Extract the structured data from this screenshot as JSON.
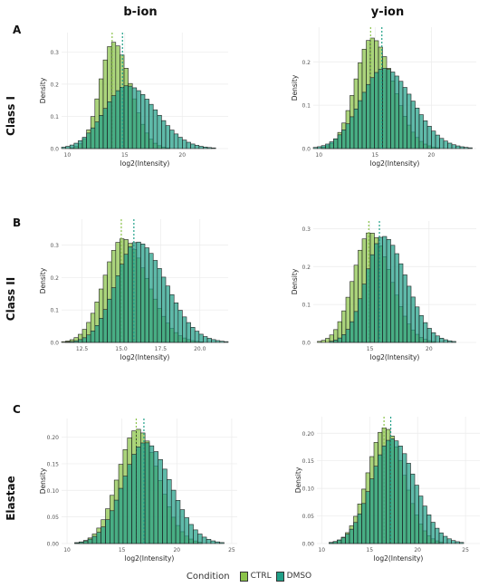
{
  "columns": [
    "b-ion",
    "y-ion"
  ],
  "rows": [
    {
      "letter": "A",
      "label": "Class I"
    },
    {
      "letter": "B",
      "label": "Class II"
    },
    {
      "letter": "C",
      "label": "Elastae"
    }
  ],
  "legend": {
    "title": "Condition",
    "entries": [
      {
        "name": "CTRL",
        "color": "#8bc34a"
      },
      {
        "name": "DMSO",
        "color": "#21a088"
      }
    ]
  },
  "colors": {
    "ctrl": "#8bc34a",
    "dmso": "#21a088",
    "grid": "#ebebeb",
    "outline": "#222222"
  },
  "chart_data": [
    {
      "type": "bar",
      "panel": "A-b-ion",
      "xlabel": "log2(Intensity)",
      "ylabel": "Density",
      "xlim": [
        9.5,
        24
      ],
      "ylim": [
        0,
        0.36
      ],
      "xticks": [
        10,
        15,
        20
      ],
      "xtick_labels": [
        "10",
        "15",
        "20"
      ],
      "yticks": [
        0,
        0.1,
        0.2,
        0.3
      ],
      "ytick_labels": [
        "0.0",
        "0.1",
        "0.2",
        "0.3"
      ],
      "series": [
        {
          "name": "CTRL",
          "mean": 14.0,
          "sd": 1.15,
          "peak": 0.33,
          "skew": 0.3,
          "median": 13.9
        },
        {
          "name": "DMSO",
          "mean": 15.2,
          "sd": 2.0,
          "peak": 0.195,
          "skew": 0.25,
          "median": 14.8
        }
      ]
    },
    {
      "type": "bar",
      "panel": "A-y-ion",
      "xlabel": "log2(Intensity)",
      "ylabel": "Density",
      "xlim": [
        9.5,
        24
      ],
      "ylim": [
        0,
        0.28
      ],
      "xticks": [
        10,
        15,
        20
      ],
      "xtick_labels": [
        "10",
        "15",
        "20"
      ],
      "yticks": [
        0,
        0.1,
        0.2
      ],
      "ytick_labels": [
        "0.0",
        "0.1",
        "0.2"
      ],
      "series": [
        {
          "name": "CTRL",
          "mean": 14.7,
          "sd": 1.45,
          "peak": 0.255,
          "skew": 0.3,
          "median": 14.6
        },
        {
          "name": "DMSO",
          "mean": 15.8,
          "sd": 2.1,
          "peak": 0.185,
          "skew": 0.2,
          "median": 15.6
        }
      ]
    },
    {
      "type": "bar",
      "panel": "B-b-ion",
      "xlabel": "log2(Intensity)",
      "ylabel": "Density",
      "xlim": [
        11.2,
        21.8
      ],
      "ylim": [
        0,
        0.38
      ],
      "xticks": [
        12.5,
        15.0,
        17.5,
        20.0
      ],
      "xtick_labels": [
        "12.5",
        "15.0",
        "17.5",
        "20.0"
      ],
      "yticks": [
        0,
        0.1,
        0.2,
        0.3
      ],
      "ytick_labels": [
        "0.0",
        "0.1",
        "0.2",
        "0.3"
      ],
      "series": [
        {
          "name": "CTRL",
          "mean": 15.1,
          "sd": 1.2,
          "peak": 0.32,
          "skew": 0.3,
          "median": 15.0
        },
        {
          "name": "DMSO",
          "mean": 16.0,
          "sd": 1.35,
          "peak": 0.31,
          "skew": 0.35,
          "median": 15.8
        }
      ]
    },
    {
      "type": "bar",
      "panel": "B-y-ion",
      "xlabel": "log2(Intensity)",
      "ylabel": "Density",
      "xlim": [
        10.2,
        24
      ],
      "ylim": [
        0,
        0.32
      ],
      "xticks": [
        15,
        20
      ],
      "xtick_labels": [
        "15",
        "20"
      ],
      "yticks": [
        0,
        0.1,
        0.2,
        0.3
      ],
      "ytick_labels": [
        "0.0",
        "0.1",
        "0.2",
        "0.3"
      ],
      "series": [
        {
          "name": "CTRL",
          "mean": 15.0,
          "sd": 1.4,
          "peak": 0.29,
          "skew": 0.25,
          "median": 14.9
        },
        {
          "name": "DMSO",
          "mean": 16.1,
          "sd": 1.45,
          "peak": 0.28,
          "skew": 0.35,
          "median": 15.8
        }
      ]
    },
    {
      "type": "bar",
      "panel": "C-b-ion",
      "xlabel": "log2(Intensity)",
      "ylabel": "Density",
      "xlim": [
        9.5,
        25.5
      ],
      "ylim": [
        0,
        0.235
      ],
      "xticks": [
        10,
        15,
        20,
        25
      ],
      "xtick_labels": [
        "10",
        "15",
        "20",
        "25"
      ],
      "yticks": [
        0,
        0.05,
        0.1,
        0.15,
        0.2
      ],
      "ytick_labels": [
        "0.00",
        "0.05",
        "0.10",
        "0.15",
        "0.20"
      ],
      "series": [
        {
          "name": "CTRL",
          "mean": 16.4,
          "sd": 1.75,
          "peak": 0.215,
          "skew": 0.1,
          "median": 16.3
        },
        {
          "name": "DMSO",
          "mean": 17.1,
          "sd": 2.0,
          "peak": 0.19,
          "skew": 0.15,
          "median": 17.0
        }
      ]
    },
    {
      "type": "bar",
      "panel": "C-y-ion",
      "xlabel": "log2(Intensity)",
      "ylabel": "Density",
      "xlim": [
        9.5,
        26.5
      ],
      "ylim": [
        0,
        0.23
      ],
      "xticks": [
        10,
        15,
        20,
        25
      ],
      "xtick_labels": [
        "10",
        "15",
        "20",
        "25"
      ],
      "yticks": [
        0,
        0.05,
        0.1,
        0.15,
        0.2
      ],
      "ytick_labels": [
        "0.00",
        "0.05",
        "0.10",
        "0.15",
        "0.20"
      ],
      "series": [
        {
          "name": "CTRL",
          "mean": 16.6,
          "sd": 1.8,
          "peak": 0.21,
          "skew": 0.1,
          "median": 16.5
        },
        {
          "name": "DMSO",
          "mean": 17.3,
          "sd": 2.1,
          "peak": 0.19,
          "skew": 0.15,
          "median": 17.2
        }
      ]
    }
  ]
}
